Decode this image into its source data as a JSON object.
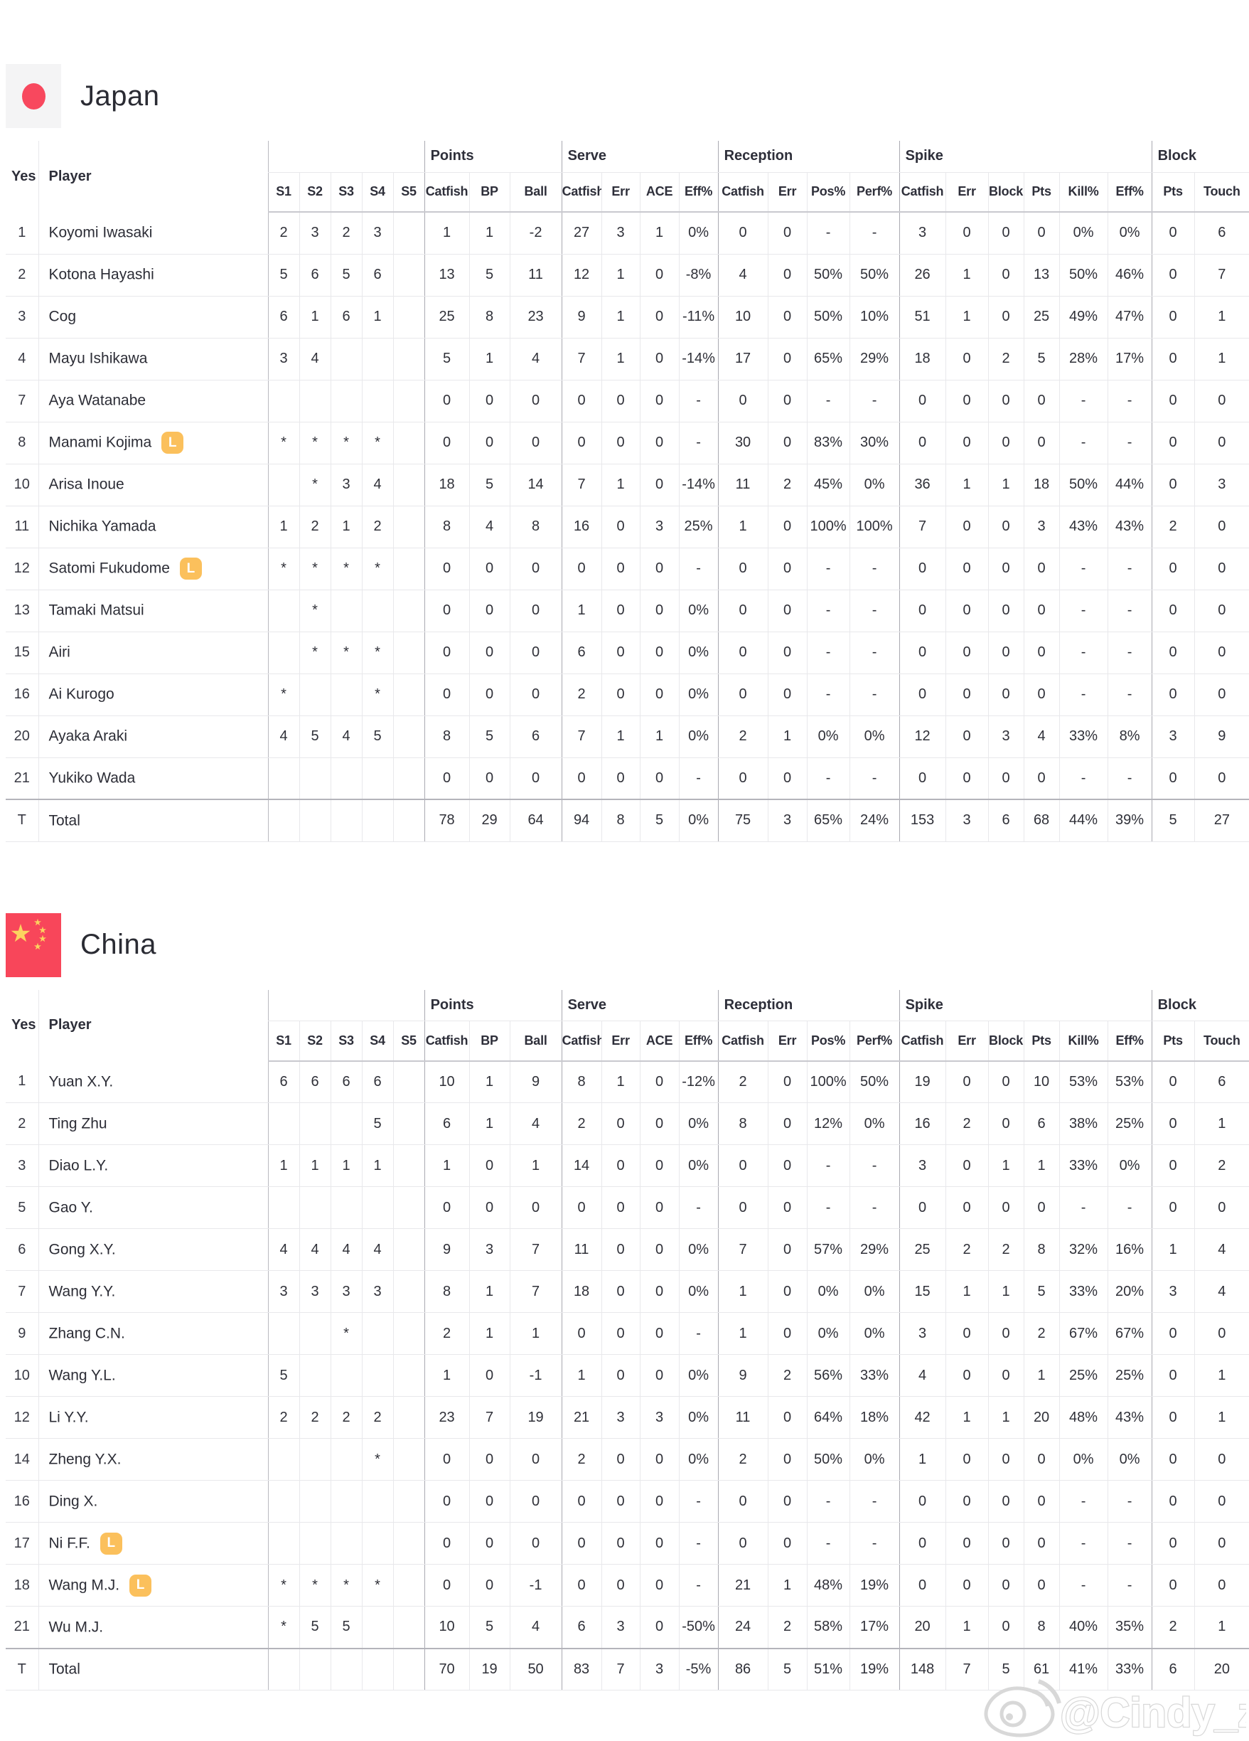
{
  "table": {
    "corner_headers": [
      "Yes",
      "Player"
    ],
    "set_headers": [
      "S1",
      "S2",
      "S3",
      "S4",
      "S5"
    ],
    "libero_label": "L",
    "groups": [
      {
        "label": "Points",
        "cols": [
          "Catfish",
          "BP",
          "Ball"
        ]
      },
      {
        "label": "Serve",
        "cols": [
          "Catfish",
          "Err",
          "ACE",
          "Eff%"
        ]
      },
      {
        "label": "Reception",
        "cols": [
          "Catfish",
          "Err",
          "Pos%",
          "Perf%"
        ]
      },
      {
        "label": "Spike",
        "cols": [
          "Catfish",
          "Err",
          "Block",
          "Pts",
          "Kill%",
          "Eff%"
        ]
      },
      {
        "label": "Block",
        "cols": [
          "Pts",
          "Touch"
        ]
      }
    ]
  },
  "teams": [
    {
      "name": "Japan",
      "rows": [
        {
          "no": "1",
          "name": "Koyomi Iwasaki",
          "libero": false,
          "sets": [
            "2",
            "3",
            "2",
            "3",
            ""
          ],
          "stats": [
            "1",
            "1",
            "-2",
            "27",
            "3",
            "1",
            "0%",
            "0",
            "0",
            "-",
            "-",
            "3",
            "0",
            "0",
            "0",
            "0%",
            "0%",
            "0",
            "6"
          ]
        },
        {
          "no": "2",
          "name": "Kotona Hayashi",
          "libero": false,
          "sets": [
            "5",
            "6",
            "5",
            "6",
            ""
          ],
          "stats": [
            "13",
            "5",
            "11",
            "12",
            "1",
            "0",
            "-8%",
            "4",
            "0",
            "50%",
            "50%",
            "26",
            "1",
            "0",
            "13",
            "50%",
            "46%",
            "0",
            "7"
          ]
        },
        {
          "no": "3",
          "name": "Cog",
          "libero": false,
          "sets": [
            "6",
            "1",
            "6",
            "1",
            ""
          ],
          "stats": [
            "25",
            "8",
            "23",
            "9",
            "1",
            "0",
            "-11%",
            "10",
            "0",
            "50%",
            "10%",
            "51",
            "1",
            "0",
            "25",
            "49%",
            "47%",
            "0",
            "1"
          ]
        },
        {
          "no": "4",
          "name": "Mayu Ishikawa",
          "libero": false,
          "sets": [
            "3",
            "4",
            "",
            "",
            ""
          ],
          "stats": [
            "5",
            "1",
            "4",
            "7",
            "1",
            "0",
            "-14%",
            "17",
            "0",
            "65%",
            "29%",
            "18",
            "0",
            "2",
            "5",
            "28%",
            "17%",
            "0",
            "1"
          ]
        },
        {
          "no": "7",
          "name": "Aya Watanabe",
          "libero": false,
          "sets": [
            "",
            "",
            "",
            "",
            ""
          ],
          "stats": [
            "0",
            "0",
            "0",
            "0",
            "0",
            "0",
            "-",
            "0",
            "0",
            "-",
            "-",
            "0",
            "0",
            "0",
            "0",
            "-",
            "-",
            "0",
            "0"
          ]
        },
        {
          "no": "8",
          "name": "Manami Kojima",
          "libero": true,
          "sets": [
            "*",
            "*",
            "*",
            "*",
            ""
          ],
          "stats": [
            "0",
            "0",
            "0",
            "0",
            "0",
            "0",
            "-",
            "30",
            "0",
            "83%",
            "30%",
            "0",
            "0",
            "0",
            "0",
            "-",
            "-",
            "0",
            "0"
          ]
        },
        {
          "no": "10",
          "name": "Arisa Inoue",
          "libero": false,
          "sets": [
            "",
            "*",
            "3",
            "4",
            ""
          ],
          "stats": [
            "18",
            "5",
            "14",
            "7",
            "1",
            "0",
            "-14%",
            "11",
            "2",
            "45%",
            "0%",
            "36",
            "1",
            "1",
            "18",
            "50%",
            "44%",
            "0",
            "3"
          ]
        },
        {
          "no": "11",
          "name": "Nichika Yamada",
          "libero": false,
          "sets": [
            "1",
            "2",
            "1",
            "2",
            ""
          ],
          "stats": [
            "8",
            "4",
            "8",
            "16",
            "0",
            "3",
            "25%",
            "1",
            "0",
            "100%",
            "100%",
            "7",
            "0",
            "0",
            "3",
            "43%",
            "43%",
            "2",
            "0"
          ]
        },
        {
          "no": "12",
          "name": "Satomi Fukudome",
          "libero": true,
          "sets": [
            "*",
            "*",
            "*",
            "*",
            ""
          ],
          "stats": [
            "0",
            "0",
            "0",
            "0",
            "0",
            "0",
            "-",
            "0",
            "0",
            "-",
            "-",
            "0",
            "0",
            "0",
            "0",
            "-",
            "-",
            "0",
            "0"
          ]
        },
        {
          "no": "13",
          "name": "Tamaki Matsui",
          "libero": false,
          "sets": [
            "",
            "*",
            "",
            "",
            ""
          ],
          "stats": [
            "0",
            "0",
            "0",
            "1",
            "0",
            "0",
            "0%",
            "0",
            "0",
            "-",
            "-",
            "0",
            "0",
            "0",
            "0",
            "-",
            "-",
            "0",
            "0"
          ]
        },
        {
          "no": "15",
          "name": "Airi",
          "libero": false,
          "sets": [
            "",
            "*",
            "*",
            "*",
            ""
          ],
          "stats": [
            "0",
            "0",
            "0",
            "6",
            "0",
            "0",
            "0%",
            "0",
            "0",
            "-",
            "-",
            "0",
            "0",
            "0",
            "0",
            "-",
            "-",
            "0",
            "0"
          ]
        },
        {
          "no": "16",
          "name": "Ai Kurogo",
          "libero": false,
          "sets": [
            "*",
            "",
            "",
            "*",
            ""
          ],
          "stats": [
            "0",
            "0",
            "0",
            "2",
            "0",
            "0",
            "0%",
            "0",
            "0",
            "-",
            "-",
            "0",
            "0",
            "0",
            "0",
            "-",
            "-",
            "0",
            "0"
          ]
        },
        {
          "no": "20",
          "name": "Ayaka Araki",
          "libero": false,
          "sets": [
            "4",
            "5",
            "4",
            "5",
            ""
          ],
          "stats": [
            "8",
            "5",
            "6",
            "7",
            "1",
            "1",
            "0%",
            "2",
            "1",
            "0%",
            "0%",
            "12",
            "0",
            "3",
            "4",
            "33%",
            "8%",
            "3",
            "9"
          ]
        },
        {
          "no": "21",
          "name": "Yukiko Wada",
          "libero": false,
          "sets": [
            "",
            "",
            "",
            "",
            ""
          ],
          "stats": [
            "0",
            "0",
            "0",
            "0",
            "0",
            "0",
            "-",
            "0",
            "0",
            "-",
            "-",
            "0",
            "0",
            "0",
            "0",
            "-",
            "-",
            "0",
            "0"
          ]
        }
      ],
      "total": {
        "no": "T",
        "name": "Total",
        "libero": false,
        "sets": [
          "",
          "",
          "",
          "",
          ""
        ],
        "stats": [
          "78",
          "29",
          "64",
          "94",
          "8",
          "5",
          "0%",
          "75",
          "3",
          "65%",
          "24%",
          "153",
          "3",
          "6",
          "68",
          "44%",
          "39%",
          "5",
          "27"
        ]
      }
    },
    {
      "name": "China",
      "rows": [
        {
          "no": "1",
          "name": "Yuan X.Y.",
          "libero": false,
          "sets": [
            "6",
            "6",
            "6",
            "6",
            ""
          ],
          "stats": [
            "10",
            "1",
            "9",
            "8",
            "1",
            "0",
            "-12%",
            "2",
            "0",
            "100%",
            "50%",
            "19",
            "0",
            "0",
            "10",
            "53%",
            "53%",
            "0",
            "6"
          ]
        },
        {
          "no": "2",
          "name": "Ting Zhu",
          "libero": false,
          "sets": [
            "",
            "",
            "",
            "5",
            ""
          ],
          "stats": [
            "6",
            "1",
            "4",
            "2",
            "0",
            "0",
            "0%",
            "8",
            "0",
            "12%",
            "0%",
            "16",
            "2",
            "0",
            "6",
            "38%",
            "25%",
            "0",
            "1"
          ]
        },
        {
          "no": "3",
          "name": "Diao L.Y.",
          "libero": false,
          "sets": [
            "1",
            "1",
            "1",
            "1",
            ""
          ],
          "stats": [
            "1",
            "0",
            "1",
            "14",
            "0",
            "0",
            "0%",
            "0",
            "0",
            "-",
            "-",
            "3",
            "0",
            "1",
            "1",
            "33%",
            "0%",
            "0",
            "2"
          ]
        },
        {
          "no": "5",
          "name": "Gao Y.",
          "libero": false,
          "sets": [
            "",
            "",
            "",
            "",
            ""
          ],
          "stats": [
            "0",
            "0",
            "0",
            "0",
            "0",
            "0",
            "-",
            "0",
            "0",
            "-",
            "-",
            "0",
            "0",
            "0",
            "0",
            "-",
            "-",
            "0",
            "0"
          ]
        },
        {
          "no": "6",
          "name": "Gong X.Y.",
          "libero": false,
          "sets": [
            "4",
            "4",
            "4",
            "4",
            ""
          ],
          "stats": [
            "9",
            "3",
            "7",
            "11",
            "0",
            "0",
            "0%",
            "7",
            "0",
            "57%",
            "29%",
            "25",
            "2",
            "2",
            "8",
            "32%",
            "16%",
            "1",
            "4"
          ]
        },
        {
          "no": "7",
          "name": "Wang Y.Y.",
          "libero": false,
          "sets": [
            "3",
            "3",
            "3",
            "3",
            ""
          ],
          "stats": [
            "8",
            "1",
            "7",
            "18",
            "0",
            "0",
            "0%",
            "1",
            "0",
            "0%",
            "0%",
            "15",
            "1",
            "1",
            "5",
            "33%",
            "20%",
            "3",
            "4"
          ]
        },
        {
          "no": "9",
          "name": "Zhang C.N.",
          "libero": false,
          "sets": [
            "",
            "",
            "*",
            "",
            ""
          ],
          "stats": [
            "2",
            "1",
            "1",
            "0",
            "0",
            "0",
            "-",
            "1",
            "0",
            "0%",
            "0%",
            "3",
            "0",
            "0",
            "2",
            "67%",
            "67%",
            "0",
            "0"
          ]
        },
        {
          "no": "10",
          "name": "Wang Y.L.",
          "libero": false,
          "sets": [
            "5",
            "",
            "",
            "",
            ""
          ],
          "stats": [
            "1",
            "0",
            "-1",
            "1",
            "0",
            "0",
            "0%",
            "9",
            "2",
            "56%",
            "33%",
            "4",
            "0",
            "0",
            "1",
            "25%",
            "25%",
            "0",
            "1"
          ]
        },
        {
          "no": "12",
          "name": "Li Y.Y.",
          "libero": false,
          "sets": [
            "2",
            "2",
            "2",
            "2",
            ""
          ],
          "stats": [
            "23",
            "7",
            "19",
            "21",
            "3",
            "3",
            "0%",
            "11",
            "0",
            "64%",
            "18%",
            "42",
            "1",
            "1",
            "20",
            "48%",
            "43%",
            "0",
            "1"
          ]
        },
        {
          "no": "14",
          "name": "Zheng Y.X.",
          "libero": false,
          "sets": [
            "",
            "",
            "",
            "*",
            ""
          ],
          "stats": [
            "0",
            "0",
            "0",
            "2",
            "0",
            "0",
            "0%",
            "2",
            "0",
            "50%",
            "0%",
            "1",
            "0",
            "0",
            "0",
            "0%",
            "0%",
            "0",
            "0"
          ]
        },
        {
          "no": "16",
          "name": "Ding X.",
          "libero": false,
          "sets": [
            "",
            "",
            "",
            "",
            ""
          ],
          "stats": [
            "0",
            "0",
            "0",
            "0",
            "0",
            "0",
            "-",
            "0",
            "0",
            "-",
            "-",
            "0",
            "0",
            "0",
            "0",
            "-",
            "-",
            "0",
            "0"
          ]
        },
        {
          "no": "17",
          "name": "Ni F.F.",
          "libero": true,
          "sets": [
            "",
            "",
            "",
            "",
            ""
          ],
          "stats": [
            "0",
            "0",
            "0",
            "0",
            "0",
            "0",
            "-",
            "0",
            "0",
            "-",
            "-",
            "0",
            "0",
            "0",
            "0",
            "-",
            "-",
            "0",
            "0"
          ]
        },
        {
          "no": "18",
          "name": "Wang M.J.",
          "libero": true,
          "sets": [
            "*",
            "*",
            "*",
            "*",
            ""
          ],
          "stats": [
            "0",
            "0",
            "-1",
            "0",
            "0",
            "0",
            "-",
            "21",
            "1",
            "48%",
            "19%",
            "0",
            "0",
            "0",
            "0",
            "-",
            "-",
            "0",
            "0"
          ]
        },
        {
          "no": "21",
          "name": "Wu M.J.",
          "libero": false,
          "sets": [
            "*",
            "5",
            "5",
            "",
            ""
          ],
          "stats": [
            "10",
            "5",
            "4",
            "6",
            "3",
            "0",
            "-50%",
            "24",
            "2",
            "58%",
            "17%",
            "20",
            "1",
            "0",
            "8",
            "40%",
            "35%",
            "2",
            "1"
          ]
        }
      ],
      "total": {
        "no": "T",
        "name": "Total",
        "libero": false,
        "sets": [
          "",
          "",
          "",
          "",
          ""
        ],
        "stats": [
          "70",
          "19",
          "50",
          "83",
          "7",
          "3",
          "-5%",
          "86",
          "5",
          "51%",
          "19%",
          "148",
          "7",
          "5",
          "61",
          "41%",
          "33%",
          "6",
          "20"
        ]
      }
    }
  ],
  "watermark": {
    "handle": "@Cindy_zju"
  },
  "colors": {
    "japan_flag_bg": "#f4f4f5",
    "japan_flag_red": "#f8485e",
    "china_flag_red": "#f8465a",
    "china_star_yellow": "#fcd25f",
    "libero_badge": "#fbc05c",
    "group_border": "#a9a9b1",
    "cell_border": "#e8e8eb",
    "watermark_gray": "#d8d8d8"
  }
}
